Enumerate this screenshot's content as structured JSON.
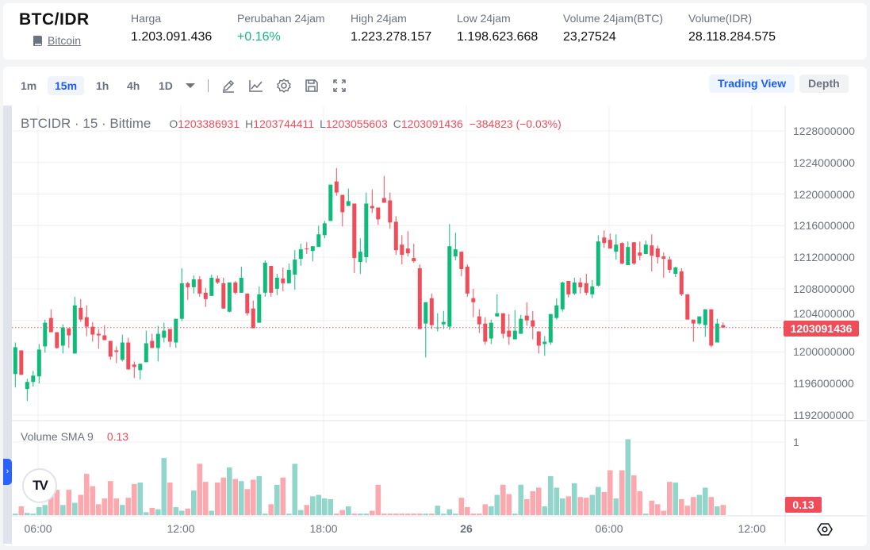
{
  "header": {
    "pair": "BTC/IDR",
    "coin_link": "Bitcoin",
    "stats": [
      {
        "label": "Harga",
        "value": "1.203.091.436"
      },
      {
        "label": "Perubahan 24jam",
        "value": "+0.16%"
      },
      {
        "label": "High 24jam",
        "value": "1.223.278.157"
      },
      {
        "label": "Low 24jam",
        "value": "1.198.623.668"
      },
      {
        "label": "Volume 24jam(BTC)",
        "value": "23,27524"
      },
      {
        "label": "Volume(IDR)",
        "value": "28.118.284.575"
      }
    ]
  },
  "toolbar": {
    "timeframes": [
      "1m",
      "15m",
      "1h",
      "4h",
      "1D"
    ],
    "active_timeframe": "15m",
    "icons": [
      "pencil-icon",
      "indicator-chart-icon",
      "settings-gear-icon",
      "save-icon",
      "fullscreen-icon"
    ],
    "views": [
      "Trading View",
      "Depth"
    ],
    "active_view": "Trading View"
  },
  "legend": {
    "symbol": "BTCIDR · 15 · Bittime",
    "o_label": "O",
    "o": "1203386931",
    "h_label": "H",
    "h": "1203744411",
    "l_label": "L",
    "l": "1203055603",
    "c_label": "C",
    "c": "1203091436",
    "change": "−384823 (−0.03%)"
  },
  "volume_legend": {
    "name": "Volume SMA 9",
    "value": "0.13"
  },
  "last_price_label": "1203091436",
  "volume_last_label": "0.13",
  "colors": {
    "up": "#0ebb7a",
    "down": "#f04d5a",
    "vol_up": "#92d6cb",
    "vol_down": "#fba8ae",
    "accent": "#1a5cff"
  },
  "chart_data": {
    "type": "candlestick",
    "interval": "15",
    "y_ticks": [
      "1228000000",
      "1224000000",
      "1220000000",
      "1216000000",
      "1212000000",
      "1208000000",
      "1204000000",
      "1200000000",
      "1196000000",
      "1192000000"
    ],
    "ylim": [
      1192000000,
      1228000000
    ],
    "x_ticks": [
      "06:00",
      "12:00",
      "18:00",
      "26",
      "06:00",
      "12:00"
    ],
    "volume_ticks": [
      "1"
    ],
    "grid": true,
    "candles_ohlc": [
      [
        1197200000,
        1201200000,
        1195500000,
        1200600000
      ],
      [
        1200200000,
        1200200000,
        1197100000,
        1197100000
      ],
      [
        1195300000,
        1196600000,
        1193800000,
        1196200000
      ],
      [
        1196200000,
        1197600000,
        1195600000,
        1197000000
      ],
      [
        1196900000,
        1201000000,
        1196000000,
        1200300000
      ],
      [
        1200700000,
        1204100000,
        1199900000,
        1203700000
      ],
      [
        1204300000,
        1205400000,
        1202500000,
        1202500000
      ],
      [
        1202500000,
        1202500000,
        1200400000,
        1200500000
      ],
      [
        1200800000,
        1203500000,
        1199800000,
        1203100000
      ],
      [
        1203000000,
        1203000000,
        1200500000,
        1202100000
      ],
      [
        1199800000,
        1207000000,
        1199800000,
        1205900000
      ],
      [
        1205600000,
        1206700000,
        1203800000,
        1204100000
      ],
      [
        1204400000,
        1205900000,
        1202000000,
        1203200000
      ],
      [
        1203200000,
        1203800000,
        1201300000,
        1202200000
      ],
      [
        1202300000,
        1202900000,
        1200400000,
        1202100000
      ],
      [
        1202100000,
        1203400000,
        1201500000,
        1201500000
      ],
      [
        1201400000,
        1201400000,
        1199000000,
        1199400000
      ],
      [
        1200200000,
        1200700000,
        1198600000,
        1200000000
      ],
      [
        1199000000,
        1202200000,
        1198800000,
        1201200000
      ],
      [
        1201200000,
        1201800000,
        1197700000,
        1197800000
      ],
      [
        1198400000,
        1198800000,
        1196700000,
        1198100000
      ],
      [
        1197700000,
        1198500000,
        1196500000,
        1198500000
      ],
      [
        1198700000,
        1202700000,
        1198700000,
        1201100000
      ],
      [
        1201400000,
        1202300000,
        1200500000,
        1200500000
      ],
      [
        1200500000,
        1203300000,
        1198800000,
        1202300000
      ],
      [
        1201800000,
        1203700000,
        1201200000,
        1202700000
      ],
      [
        1202900000,
        1202900000,
        1200600000,
        1201300000
      ],
      [
        1201200000,
        1204200000,
        1200500000,
        1204200000
      ],
      [
        1204200000,
        1210600000,
        1203900000,
        1208700000
      ],
      [
        1208700000,
        1208900000,
        1206600000,
        1208200000
      ],
      [
        1208200000,
        1209700000,
        1207400000,
        1209200000
      ],
      [
        1209200000,
        1209600000,
        1207000000,
        1207400000
      ],
      [
        1207500000,
        1208100000,
        1205700000,
        1206700000
      ],
      [
        1207100000,
        1209800000,
        1207100000,
        1209400000
      ],
      [
        1209300000,
        1209700000,
        1208600000,
        1208800000
      ],
      [
        1208700000,
        1209400000,
        1205500000,
        1205500000
      ],
      [
        1205100000,
        1208800000,
        1205000000,
        1208800000
      ],
      [
        1208800000,
        1209000000,
        1207300000,
        1207500000
      ],
      [
        1207500000,
        1210800000,
        1207500000,
        1209400000
      ],
      [
        1207400000,
        1207400000,
        1204600000,
        1204900000
      ],
      [
        1205500000,
        1206500000,
        1203000000,
        1203000000
      ],
      [
        1203700000,
        1208300000,
        1203700000,
        1207300000
      ],
      [
        1207500000,
        1211600000,
        1207000000,
        1211300000
      ],
      [
        1210900000,
        1210900000,
        1207000000,
        1207500000
      ],
      [
        1208000000,
        1209900000,
        1207200000,
        1209400000
      ],
      [
        1209300000,
        1210700000,
        1207700000,
        1208700000
      ],
      [
        1208700000,
        1211200000,
        1208700000,
        1210400000
      ],
      [
        1209800000,
        1212900000,
        1207900000,
        1211700000
      ],
      [
        1211800000,
        1213700000,
        1210900000,
        1213000000
      ],
      [
        1213100000,
        1213900000,
        1212400000,
        1213000000
      ],
      [
        1212800000,
        1213400000,
        1211500000,
        1213400000
      ],
      [
        1213300000,
        1216000000,
        1213300000,
        1214900000
      ],
      [
        1214800000,
        1216600000,
        1214400000,
        1216300000
      ],
      [
        1216600000,
        1221200000,
        1216600000,
        1221200000
      ],
      [
        1221600000,
        1223300000,
        1219800000,
        1220200000
      ],
      [
        1219900000,
        1219900000,
        1215900000,
        1217700000
      ],
      [
        1218500000,
        1220700000,
        1218500000,
        1219100000
      ],
      [
        1218800000,
        1218800000,
        1210000000,
        1211900000
      ],
      [
        1211400000,
        1214400000,
        1209900000,
        1212700000
      ],
      [
        1212000000,
        1220200000,
        1211300000,
        1218800000
      ],
      [
        1218500000,
        1220600000,
        1217600000,
        1218200000
      ],
      [
        1218300000,
        1218300000,
        1216100000,
        1216800000
      ],
      [
        1219500000,
        1222300000,
        1218900000,
        1218900000
      ],
      [
        1219200000,
        1220200000,
        1215600000,
        1216400000
      ],
      [
        1216500000,
        1217200000,
        1212300000,
        1212900000
      ],
      [
        1213600000,
        1214800000,
        1211100000,
        1212300000
      ],
      [
        1213100000,
        1215300000,
        1212100000,
        1212500000
      ],
      [
        1211900000,
        1213700000,
        1211300000,
        1211500000
      ],
      [
        1210600000,
        1211100000,
        1202900000,
        1202900000
      ],
      [
        1203600000,
        1206300000,
        1199300000,
        1206300000
      ],
      [
        1206800000,
        1207400000,
        1202900000,
        1203400000
      ],
      [
        1203000000,
        1204900000,
        1202600000,
        1203100000
      ],
      [
        1203500000,
        1205200000,
        1202900000,
        1203800000
      ],
      [
        1203200000,
        1216200000,
        1202800000,
        1213400000
      ],
      [
        1212100000,
        1215100000,
        1211600000,
        1213000000
      ],
      [
        1212700000,
        1212700000,
        1209600000,
        1210500000
      ],
      [
        1210800000,
        1211100000,
        1207000000,
        1207400000
      ],
      [
        1206800000,
        1208000000,
        1204400000,
        1206300000
      ],
      [
        1204500000,
        1205400000,
        1202400000,
        1203500000
      ],
      [
        1203600000,
        1204400000,
        1200900000,
        1201300000
      ],
      [
        1201700000,
        1204100000,
        1201000000,
        1203700000
      ],
      [
        1204500000,
        1207300000,
        1204500000,
        1204900000
      ],
      [
        1204900000,
        1204900000,
        1201700000,
        1202300000
      ],
      [
        1202700000,
        1204800000,
        1200900000,
        1201900000
      ],
      [
        1201600000,
        1205300000,
        1201600000,
        1202700000
      ],
      [
        1202300000,
        1204700000,
        1202300000,
        1204200000
      ],
      [
        1204600000,
        1206300000,
        1203300000,
        1204000000
      ],
      [
        1204000000,
        1205200000,
        1201600000,
        1203200000
      ],
      [
        1202600000,
        1202600000,
        1199800000,
        1200800000
      ],
      [
        1201000000,
        1202000000,
        1199500000,
        1201300000
      ],
      [
        1201200000,
        1204800000,
        1200900000,
        1204800000
      ],
      [
        1204300000,
        1206800000,
        1204100000,
        1205900000
      ],
      [
        1205400000,
        1208900000,
        1205100000,
        1208800000
      ],
      [
        1209000000,
        1209000000,
        1206900000,
        1207300000
      ],
      [
        1207400000,
        1209400000,
        1207200000,
        1208800000
      ],
      [
        1208800000,
        1209400000,
        1207400000,
        1208200000
      ],
      [
        1208700000,
        1209900000,
        1207200000,
        1207500000
      ],
      [
        1207300000,
        1209100000,
        1206800000,
        1208300000
      ],
      [
        1208400000,
        1214800000,
        1208300000,
        1214000000
      ],
      [
        1214500000,
        1215400000,
        1213200000,
        1213800000
      ],
      [
        1214200000,
        1215000000,
        1213100000,
        1213100000
      ],
      [
        1212700000,
        1214900000,
        1211700000,
        1213600000
      ],
      [
        1213800000,
        1213900000,
        1211100000,
        1211200000
      ],
      [
        1211000000,
        1214000000,
        1211000000,
        1213300000
      ],
      [
        1213900000,
        1213900000,
        1211000000,
        1211200000
      ],
      [
        1212600000,
        1214000000,
        1211600000,
        1212200000
      ],
      [
        1212400000,
        1214100000,
        1212400000,
        1213600000
      ],
      [
        1213500000,
        1214900000,
        1210200000,
        1212200000
      ],
      [
        1213100000,
        1213500000,
        1211200000,
        1212000000
      ],
      [
        1212100000,
        1212600000,
        1209400000,
        1211800000
      ],
      [
        1211700000,
        1212100000,
        1210000000,
        1210400000
      ],
      [
        1209900000,
        1210800000,
        1209500000,
        1210700000
      ],
      [
        1210200000,
        1210600000,
        1207100000,
        1207300000
      ],
      [
        1207300000,
        1207300000,
        1204100000,
        1204100000
      ],
      [
        1204100000,
        1204100000,
        1201300000,
        1203600000
      ],
      [
        1203600000,
        1204500000,
        1203400000,
        1204500000
      ],
      [
        1203400000,
        1205400000,
        1201900000,
        1205400000
      ],
      [
        1205400000,
        1205400000,
        1200600000,
        1200800000
      ],
      [
        1201200000,
        1204200000,
        1201200000,
        1203600000
      ],
      [
        1203386931,
        1203744411,
        1203055603,
        1203091436
      ]
    ],
    "volume": [
      0.02,
      0.12,
      0.03,
      0.02,
      0.11,
      0.14,
      0.3,
      0.35,
      0.14,
      0.35,
      0.17,
      0.28,
      0.57,
      0.4,
      0.15,
      0.23,
      0.47,
      0.23,
      0.14,
      0.24,
      0.43,
      0.45,
      0.04,
      0.1,
      0.08,
      0.79,
      0.45,
      0.11,
      0.06,
      0.09,
      0.34,
      0.71,
      0.46,
      0.06,
      0.45,
      0.52,
      0.66,
      0.5,
      0.47,
      0.36,
      0.49,
      0.54,
      0.02,
      0.15,
      0.42,
      0.52,
      0.02,
      0.71,
      0.07,
      0.14,
      0.26,
      0.28,
      0.23,
      0.22,
      0.02,
      0.07,
      0.12,
      0.02,
      0.02,
      0.02,
      0.06,
      0.42,
      0.02,
      0.02,
      0.02,
      0.02,
      0.02,
      0.02,
      0.02,
      0.02,
      0.02,
      0.13,
      0.02,
      0.08,
      0.02,
      0.24,
      0.11,
      0.02,
      0.02,
      0.15,
      0.12,
      0.28,
      0.42,
      0.29,
      0.02,
      0.42,
      0.22,
      0.33,
      0.38,
      0.12,
      0.54,
      0.38,
      0.23,
      0.26,
      0.44,
      0.25,
      0.24,
      0.28,
      0.39,
      0.32,
      0.62,
      0.23,
      0.62,
      1.05,
      0.55,
      0.33,
      0.02,
      0.2,
      0.15,
      0.06,
      0.46,
      0.45,
      0.22,
      0.13,
      0.25,
      0.28,
      0.38,
      0.25,
      0.12,
      0.14
    ],
    "last_price": 1203091436
  }
}
